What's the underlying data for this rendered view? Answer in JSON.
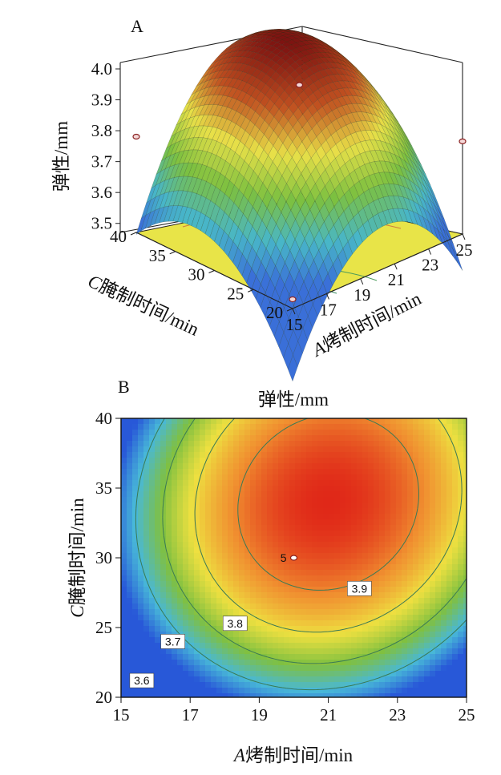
{
  "chart_data": [
    {
      "panel_label": "A",
      "type": "surface3d",
      "title": "",
      "zlabel": "弹性/mm",
      "z_ticks": [
        "3.5",
        "3.6",
        "3.7",
        "3.8",
        "3.9",
        "4.0"
      ],
      "zlim": [
        3.45,
        4.0
      ],
      "x_axis": {
        "label_prefix": "A",
        "label": "烤制时间/min",
        "ticks": [
          "15",
          "17",
          "19",
          "21",
          "23",
          "25"
        ],
        "range": [
          15,
          25
        ]
      },
      "y_axis": {
        "label_prefix": "C",
        "label": "腌制时间/min",
        "ticks": [
          "20",
          "25",
          "30",
          "35",
          "40"
        ],
        "range": [
          20,
          40
        ]
      },
      "surface_colors": [
        "#3a6fd8",
        "#48b6c8",
        "#7cc040",
        "#e8e048",
        "#c05020",
        "#7a1010"
      ],
      "design_points": [
        {
          "x": 20,
          "y": 30,
          "z": 3.91
        },
        {
          "x": 15,
          "y": 40,
          "z": 3.74
        },
        {
          "x": 25,
          "y": 20,
          "z": 3.73
        },
        {
          "x": 25,
          "y": 40,
          "z": 3.99
        },
        {
          "x": 15,
          "y": 20,
          "z": 3.46
        }
      ]
    },
    {
      "panel_label": "B",
      "type": "contour",
      "title": "弹性/mm",
      "x_axis": {
        "label_prefix": "A",
        "label": "烤制时间/min",
        "ticks": [
          "15",
          "17",
          "19",
          "21",
          "23",
          "25"
        ],
        "range": [
          15,
          25
        ]
      },
      "y_axis": {
        "label_prefix": "C",
        "label": "腌制时间/min",
        "ticks": [
          "20",
          "25",
          "30",
          "35",
          "40"
        ],
        "range": [
          20,
          40
        ]
      },
      "contour_labels": [
        {
          "text": "3.9",
          "x": 21.9,
          "y": 27.8
        },
        {
          "text": "3.8",
          "x": 18.3,
          "y": 25.3
        },
        {
          "text": "3.7",
          "x": 16.5,
          "y": 24.0
        },
        {
          "text": "3.6",
          "x": 15.6,
          "y": 21.2
        }
      ],
      "contour_levels": [
        3.6,
        3.7,
        3.8,
        3.9
      ],
      "center_point": {
        "x": 20,
        "y": 30,
        "label": "5"
      },
      "colormap": [
        "#2858d8",
        "#48b8d8",
        "#80c040",
        "#eee040",
        "#f09030",
        "#e02818"
      ]
    }
  ]
}
